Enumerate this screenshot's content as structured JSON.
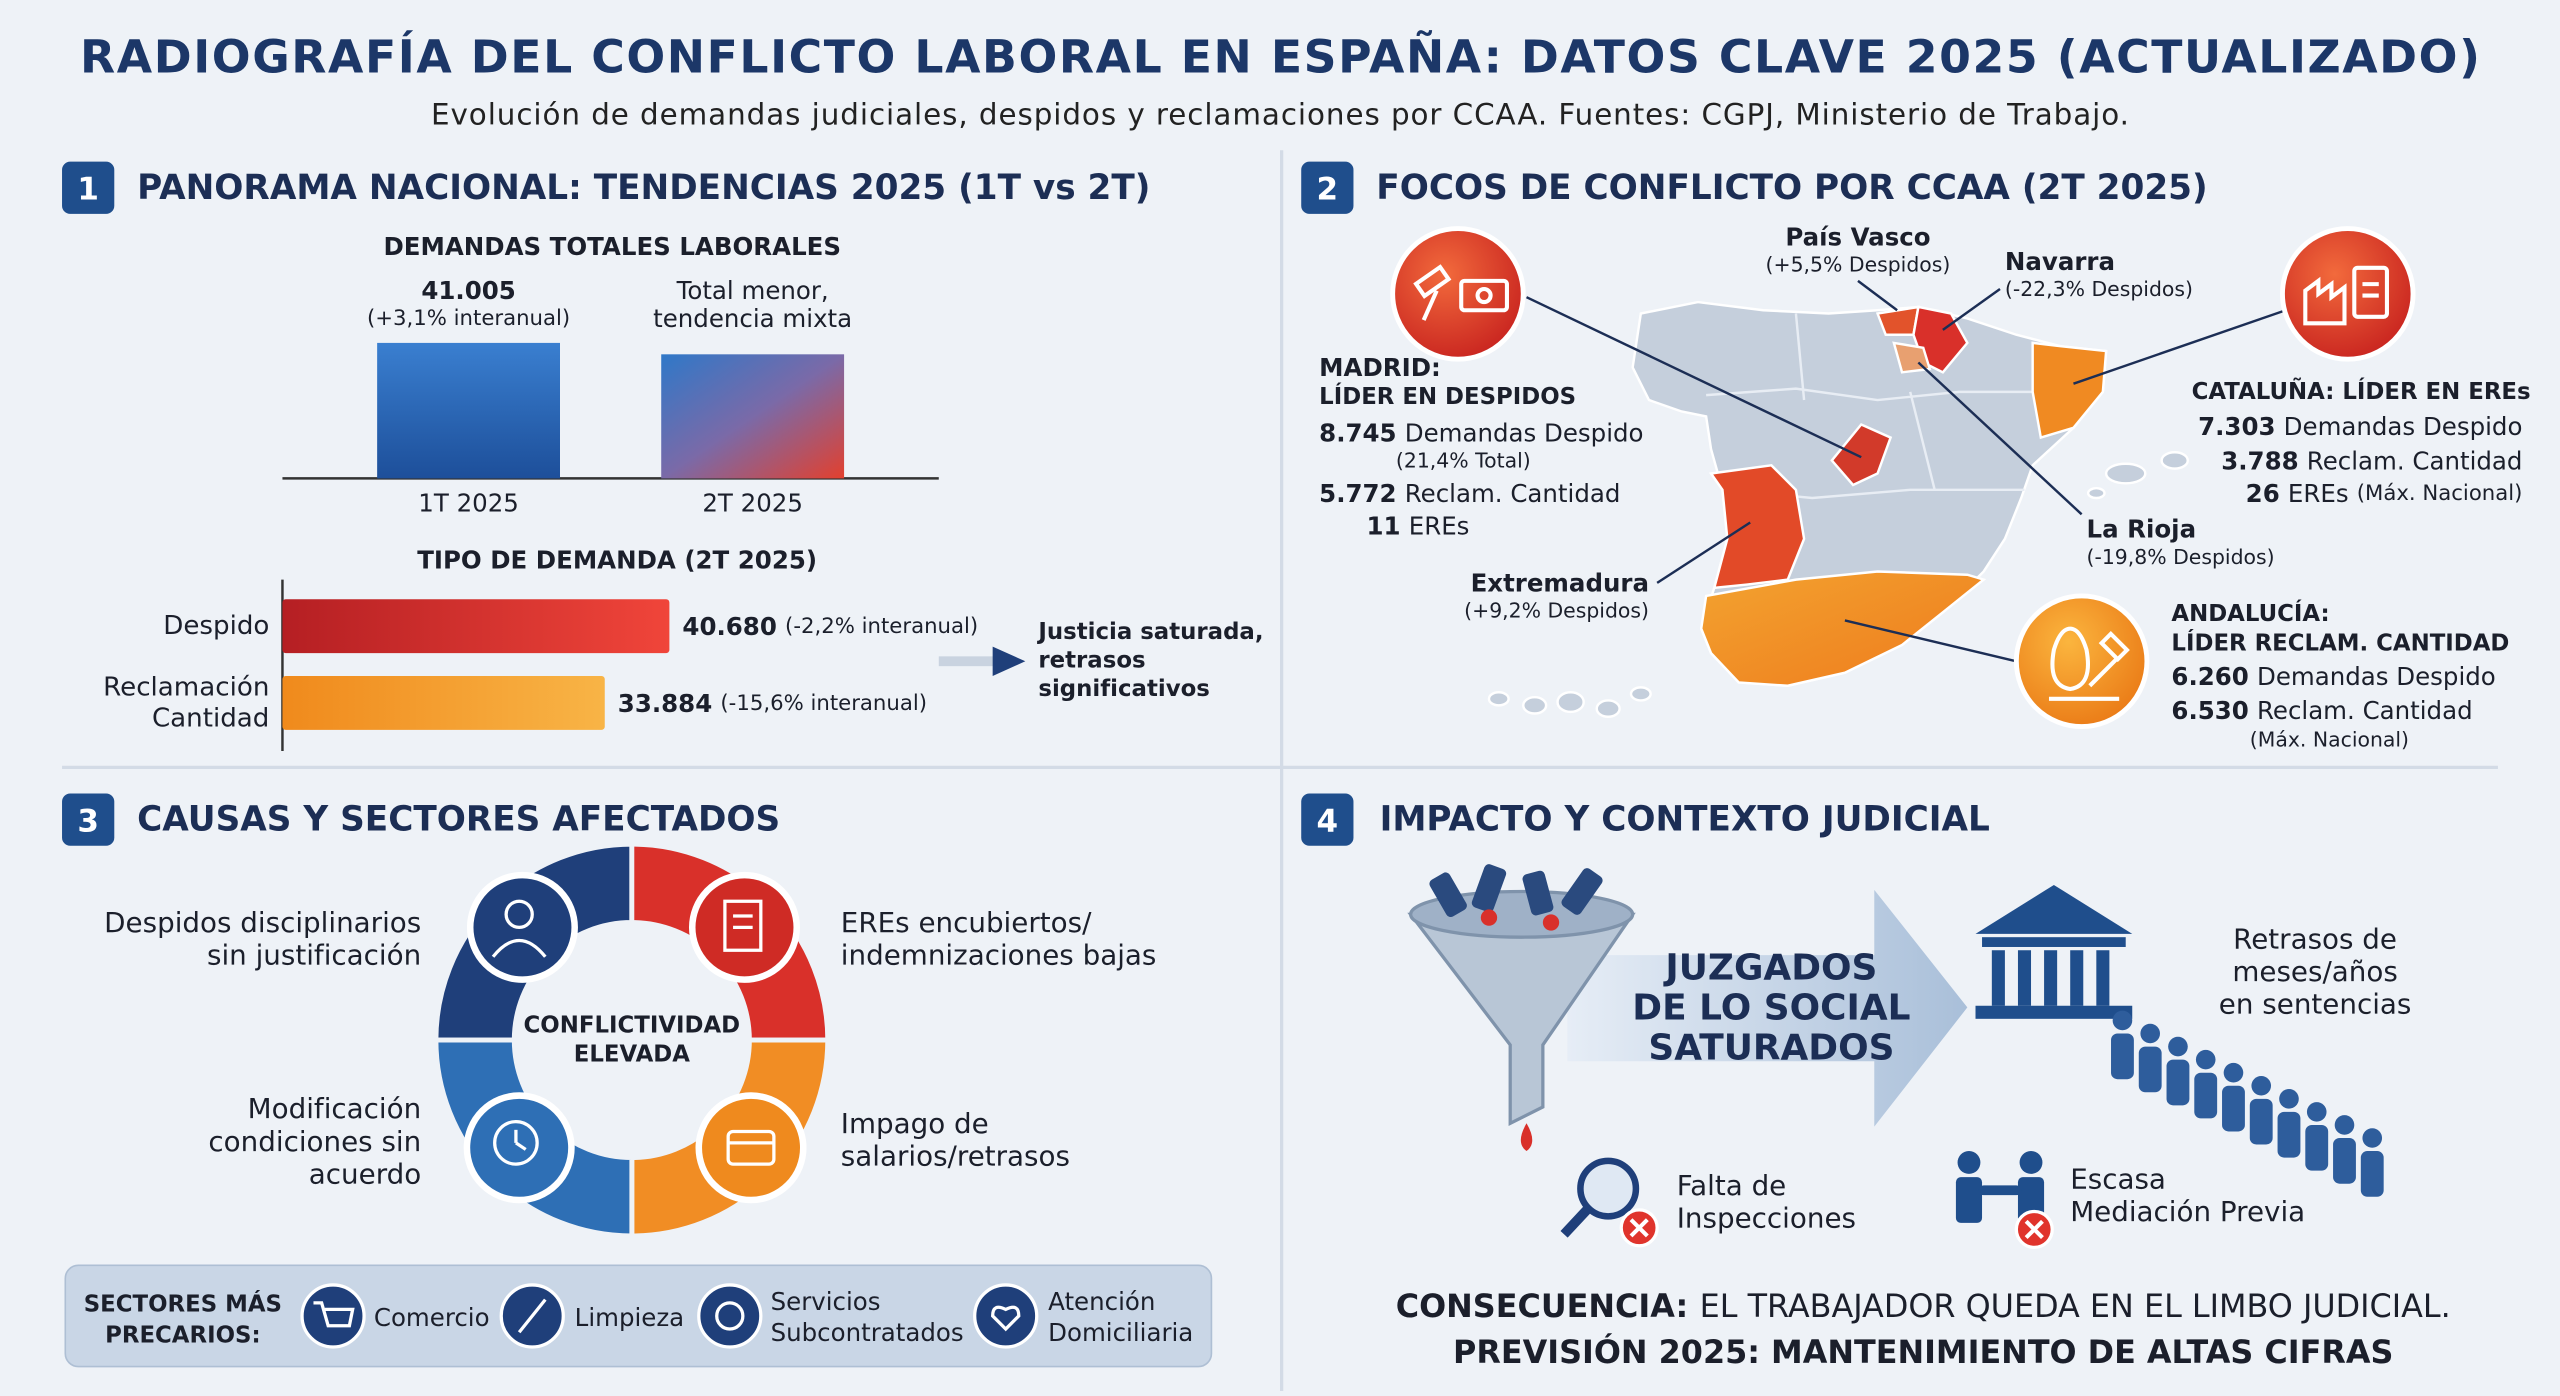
{
  "header": {
    "title": "RADIOGRAFÍA DEL CONFLICTO LABORAL EN ESPAÑA: DATOS CLAVE 2025 (ACTUALIZADO)",
    "subtitle": "Evolución de demandas judiciales, despidos y reclamaciones por CCAA. Fuentes: CGPJ, Ministerio de Trabajo."
  },
  "panel1": {
    "number": "1",
    "title": "PANORAMA NACIONAL: TENDENCIAS 2025 (1T vs 2T)",
    "totals": {
      "title": "DEMANDAS TOTALES LABORALES",
      "bars": [
        {
          "label": "1T 2025",
          "value": 41005,
          "value_label": "41.005",
          "note": [
            "(+3,1% interanual)"
          ]
        },
        {
          "label": "2T 2025",
          "value": 37550,
          "note": [
            "Total menor,",
            "tendencia mixta"
          ]
        }
      ]
    },
    "types": {
      "title": "TIPO DE DEMANDA (2T 2025)",
      "bars": [
        {
          "label": [
            "Despido"
          ],
          "value": 40680,
          "value_label": "40.680",
          "note": "(-2,2% interanual)"
        },
        {
          "label": [
            "Reclamación",
            "Cantidad"
          ],
          "value": 33884,
          "value_label": "33.884",
          "note": "(-15,6% interanual)"
        }
      ]
    },
    "callout": [
      "Justicia saturada,",
      "retrasos",
      "significativos"
    ]
  },
  "panel2": {
    "number": "2",
    "title": "FOCOS DE CONFLICTO POR CCAA (2T 2025)",
    "leaders": [
      {
        "heading": [
          "MADRID:",
          "LÍDER EN DESPIDOS"
        ],
        "stats": [
          {
            "value": "8.745",
            "label": "Demandas Despido"
          },
          {
            "note": "(21,4% Total)"
          },
          {
            "value": "5.772",
            "label": "Reclam. Cantidad"
          },
          {
            "value": "11",
            "label": "EREs"
          }
        ]
      },
      {
        "heading": [
          "CATALUÑA: LÍDER EN EREs"
        ],
        "stats": [
          {
            "value": "7.303",
            "label": "Demandas Despido"
          },
          {
            "value": "3.788",
            "label": "Reclam. Cantidad"
          },
          {
            "value": "26",
            "label": "EREs",
            "note": "(Máx. Nacional)"
          }
        ]
      },
      {
        "heading": [
          "ANDALUCÍA:",
          "LÍDER RECLAM. CANTIDAD"
        ],
        "stats": [
          {
            "value": "6.260",
            "label": "Demandas Despido"
          },
          {
            "value": "6.530",
            "label": "Reclam. Cantidad"
          },
          {
            "note": "(Máx. Nacional)"
          }
        ]
      }
    ],
    "regions": [
      {
        "name": "País Vasco",
        "change": "(+5,5% Despidos)"
      },
      {
        "name": "Navarra",
        "change": "(-22,3% Despidos)"
      },
      {
        "name": "La Rioja",
        "change": "(-19,8% Despidos)"
      },
      {
        "name": "Extremadura",
        "change": "(+9,2% Despidos)"
      }
    ]
  },
  "panel3": {
    "number": "3",
    "title": "CAUSAS Y SECTORES AFECTADOS",
    "center": [
      "CONFLICTIVIDAD",
      "ELEVADA"
    ],
    "causes": [
      [
        "Despidos disciplinarios",
        "sin justificación"
      ],
      [
        "EREs encubiertos/",
        "indemnizaciones bajas"
      ],
      [
        "Modificación",
        "condiciones sin",
        "acuerdo"
      ],
      [
        "Impago de",
        "salarios/retrasos"
      ]
    ],
    "sectors_label": [
      "SECTORES MÁS",
      "PRECARIOS:"
    ],
    "sectors": [
      [
        "Comercio"
      ],
      [
        "Limpieza"
      ],
      [
        "Servicios",
        "Subcontratados"
      ],
      [
        "Atención",
        "Domiciliaria"
      ]
    ]
  },
  "panel4": {
    "number": "4",
    "title": "IMPACTO Y CONTEXTO JUDICIAL",
    "bottleneck": [
      "JUZGADOS",
      "DE LO SOCIAL",
      "SATURADOS"
    ],
    "delays": [
      "Retrasos de",
      "meses/años",
      "en sentencias"
    ],
    "factors": [
      [
        "Falta de",
        "Inspecciones"
      ],
      [
        "Escasa",
        "Mediación Previa"
      ]
    ],
    "consequence": {
      "label": "CONSECUENCIA:",
      "text": "EL TRABAJADOR QUEDA EN EL LIMBO JUDICIAL."
    },
    "forecast": "PREVISIÓN 2025: MANTENIMIENTO DE ALTAS CIFRAS"
  }
}
